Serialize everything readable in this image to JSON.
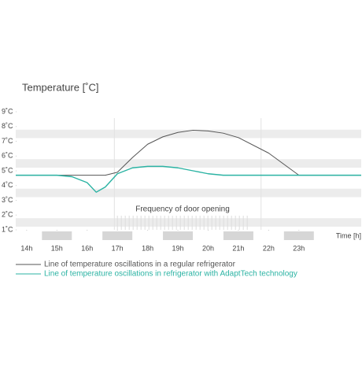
{
  "chart_data": {
    "type": "line",
    "title": "Temperature [˚C]",
    "x_label": "Time [h]",
    "annotation": "Frequency of door opening",
    "x": [
      13.64,
      14,
      15,
      15.5,
      16,
      16.3,
      16.6,
      17,
      17.5,
      18,
      18.5,
      19,
      19.5,
      20,
      20.5,
      21,
      22,
      23,
      24,
      25.06
    ],
    "series": [
      {
        "name": "Line of temperature oscillations in a regular refrigerator",
        "color": "#555555",
        "values": [
          4.7,
          4.7,
          4.7,
          4.7,
          4.7,
          4.7,
          4.7,
          4.9,
          5.9,
          6.8,
          7.3,
          7.6,
          7.75,
          7.7,
          7.55,
          7.25,
          6.2,
          4.7,
          4.7,
          4.7
        ]
      },
      {
        "name": "Line of temperature oscillations in refrigerator with AdaptTech technology",
        "color": "#2bb3a3",
        "values": [
          4.7,
          4.7,
          4.7,
          4.6,
          4.2,
          3.55,
          3.9,
          4.8,
          5.2,
          5.3,
          5.3,
          5.2,
          5.0,
          4.8,
          4.7,
          4.7,
          4.7,
          4.7,
          4.7,
          4.7
        ]
      }
    ],
    "xlim": [
      13.64,
      25.06
    ],
    "xticks": [
      {
        "value": 14,
        "label": "14h"
      },
      {
        "value": 15,
        "label": "15h"
      },
      {
        "value": 16,
        "label": "16h"
      },
      {
        "value": 17,
        "label": "17h"
      },
      {
        "value": 18,
        "label": "18h"
      },
      {
        "value": 19,
        "label": "19h"
      },
      {
        "value": 20,
        "label": "20h"
      },
      {
        "value": 21,
        "label": "21h"
      },
      {
        "value": 22,
        "label": "22h"
      },
      {
        "value": 23,
        "label": "23h"
      }
    ],
    "ylim": [
      1,
      9
    ],
    "yticks": [
      {
        "value": 1,
        "label": "1˚C"
      },
      {
        "value": 2,
        "label": "2˚C"
      },
      {
        "value": 3,
        "label": "3˚C"
      },
      {
        "value": 4,
        "label": "4˚C"
      },
      {
        "value": 5,
        "label": "5˚C"
      },
      {
        "value": 6,
        "label": "6˚C"
      },
      {
        "value": 7,
        "label": "7˚C"
      },
      {
        "value": 8,
        "label": "8˚C"
      },
      {
        "value": 9,
        "label": "9˚C"
      }
    ]
  }
}
